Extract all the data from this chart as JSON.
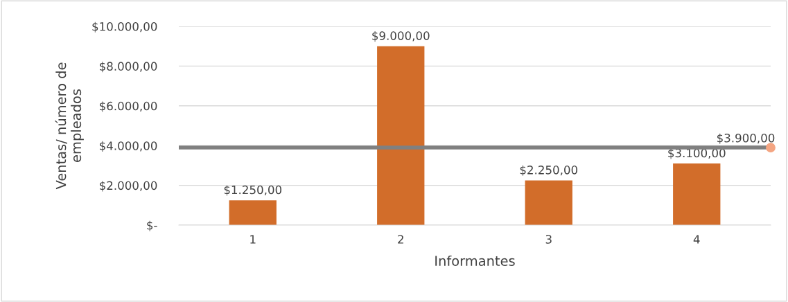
{
  "chart_data": {
    "type": "bar",
    "xlabel": "Informantes",
    "ylabel": "Ventas/ número de\nempleados",
    "categories": [
      "1",
      "2",
      "3",
      "4"
    ],
    "series": [
      {
        "color": "#d26d2a",
        "values": [
          1250,
          9000,
          2250,
          3100
        ],
        "value_labels": [
          "$1.250,00",
          "$9.000,00",
          "$2.250,00",
          "$3.100,00"
        ]
      }
    ],
    "ylim": [
      0,
      10000
    ],
    "yticks": [
      {
        "value": 0,
        "label": "$-"
      },
      {
        "value": 2000,
        "label": "$2.000,00"
      },
      {
        "value": 4000,
        "label": "$4.000,00"
      },
      {
        "value": 6000,
        "label": "$6.000,00"
      },
      {
        "value": 8000,
        "label": "$8.000,00"
      },
      {
        "value": 10000,
        "label": "$10.000,00"
      }
    ],
    "ref_lines": [
      {
        "axis": "y",
        "value": 3900,
        "label": "$3.900,00",
        "color": "#808080",
        "line_style": "solid"
      }
    ],
    "grid": "y",
    "legend": false
  }
}
